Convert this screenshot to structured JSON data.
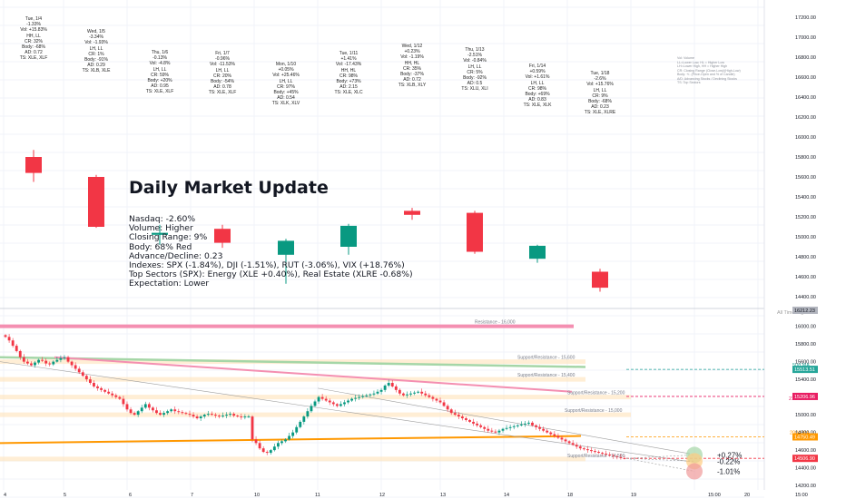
{
  "title": "Daily Market Update",
  "info_lines": [
    "Nasdaq: -2.60%",
    "Volume: Higher",
    "Closing Range: 9%",
    "Body: 68% Red",
    "Advance/Decline: 0.23",
    "Indexes: SPX (-1.84%), DJI (-1.51%), RUT (-3.06%), VIX (+18.76%)",
    "Top Sectors (SPX): Energy (XLE +0.40%), Real Estate (XLRE -0.68%)",
    "Expectation: Lower"
  ],
  "legend_lines": [
    "Vol: Volume",
    "LL=Lower Low, HL = Higher Low",
    "LH=Lower High, HH = Higher High",
    "CR: Closing Range (Close-Low)/(High-Low)",
    "Body: +/- (Price-Open and % of Candle)",
    "A/D: Advancing Stocks / Declining Stocks",
    "TS: Top Sectors"
  ],
  "colors": {
    "up": "#089981",
    "down": "#f23645",
    "bg": "#ffffff",
    "grid": "#f0f3fa",
    "ma50": "#26a69a",
    "ema21": "#e91e63",
    "ma200": "#ff9800",
    "resistance_band": "#ffe0b2",
    "resistance_line": "#f48fb1"
  },
  "chart_data": [
    {
      "type": "candlestick",
      "title": "Daily candles",
      "y_axis_ticks": [
        "17200.00",
        "17000.00",
        "16800.00",
        "16600.00",
        "16400.00",
        "16200.00",
        "16000.00",
        "15800.00",
        "15600.00",
        "15400.00",
        "15200.00",
        "15000.00",
        "14800.00",
        "14600.00",
        "14400.00",
        "14200.00",
        "17800.00",
        "17600.00",
        "17400.00"
      ],
      "ylim": [
        14300,
        17300
      ],
      "candles": [
        {
          "label": "Tue, 1/4",
          "lines": [
            "Tue, 1/4",
            "-1.33%",
            "Vol: +15.83%",
            "HH, LL",
            "CR: 32%",
            "Body: -68%",
            "AD: 0.72",
            "TS: XLE, XLF"
          ],
          "open": 15800,
          "high": 15870,
          "low": 15550,
          "close": 15640
        },
        {
          "label": "Wed, 1/5",
          "lines": [
            "Wed, 1/5",
            "-3.34%",
            "Vol: -1.93%",
            "LH, LL",
            "CR: 1%",
            "Body: -91%",
            "AD: 0.29",
            "TS: XLB, XLE"
          ],
          "open": 15600,
          "high": 15620,
          "low": 15090,
          "close": 15100
        },
        {
          "label": "Thu, 1/6",
          "lines": [
            "Thu, 1/6",
            "-0.13%",
            "Vol: -4.8%",
            "LH, LL",
            "CR: 59%",
            "Body: +20%",
            "AD: 0.95",
            "TS: XLE, XLF"
          ],
          "open": 15020,
          "high": 15120,
          "low": 14920,
          "close": 15040
        },
        {
          "label": "Fri, 1/7",
          "lines": [
            "Fri, 1/7",
            "-0.96%",
            "Vol: -11.53%",
            "LH, LL",
            "CR: 20%",
            "Body: -54%",
            "AD: 0.78",
            "TS: XLE, XLF"
          ],
          "open": 15080,
          "high": 15120,
          "low": 14890,
          "close": 14940
        },
        {
          "label": "Mon, 1/10",
          "lines": [
            "Mon, 1/10",
            "+0.05%",
            "Vol: +25.46%",
            "LH, LL",
            "CR: 97%",
            "Body: +45%",
            "AD: 0.54",
            "TS: XLK, XLV"
          ],
          "open": 14820,
          "high": 14980,
          "low": 14530,
          "close": 14960
        },
        {
          "label": "Tue, 1/11",
          "lines": [
            "Tue, 1/11",
            "+1.41%",
            "Vol: -17.43%",
            "HH, HL",
            "CR: 98%",
            "Body: +73%",
            "AD: 2.15",
            "TS: XLE, XLC"
          ],
          "open": 14900,
          "high": 15130,
          "low": 14820,
          "close": 15110
        },
        {
          "label": "Wed, 1/12",
          "lines": [
            "Wed, 1/12",
            "+0.23%",
            "Vol: -1.19%",
            "HH, HL",
            "CR: 35%",
            "Body: -37%",
            "AD: 0.72",
            "TS: XLB, XLY"
          ],
          "open": 15260,
          "high": 15290,
          "low": 15170,
          "close": 15220
        },
        {
          "label": "Thu, 1/13",
          "lines": [
            "Thu, 1/13",
            "-2.51%",
            "Vol: -0.84%",
            "LH, LL",
            "CR: 5%",
            "Body: -92%",
            "AD: 0.5",
            "TS: XLU, XLI"
          ],
          "open": 15240,
          "high": 15260,
          "low": 14830,
          "close": 14850
        },
        {
          "label": "Fri, 1/14",
          "lines": [
            "Fri, 1/14",
            "+0.59%",
            "Vol: +1.61%",
            "LH, LL",
            "CR: 98%",
            "Body: +69%",
            "AD: 0.83",
            "TS: XLE, XLK"
          ],
          "open": 14780,
          "high": 14920,
          "low": 14740,
          "close": 14910
        },
        {
          "label": "Tue, 1/18",
          "lines": [
            "Tue, 1/18",
            "-2.6%",
            "Vol: +15.76%",
            "LH, LL",
            "CR: 9%",
            "Body: -68%",
            "AD: 0.23",
            "TS: XLE, XLRE"
          ],
          "open": 14650,
          "high": 14680,
          "low": 14450,
          "close": 14490
        }
      ]
    },
    {
      "type": "candlestick",
      "title": "Intraday 15-min",
      "x_tick_labels": [
        "4",
        "5",
        "6",
        "7",
        "10",
        "11",
        "12",
        "13",
        "14",
        "18",
        "19",
        "15:00",
        "20",
        "15:00"
      ],
      "y_axis_ticks": [
        "16000.00",
        "15800.00",
        "15600.00",
        "15400.00",
        "15200.00",
        "15000.00",
        "14800.00",
        "14600.00",
        "14400.00",
        "14200.00"
      ],
      "ylim": [
        14150,
        16150
      ],
      "highlighted_values": [
        {
          "label": "16212.23",
          "color": "#b2b5be"
        },
        {
          "label": "15513.51",
          "color": "#26a69a"
        },
        {
          "label": "15206.96",
          "color": "#e91e63"
        },
        {
          "label": "14750.49",
          "color": "#ff9800"
        },
        {
          "label": "14506.90",
          "color": "#f23645"
        }
      ],
      "levels": [
        {
          "label": "All Time High",
          "value": 16212
        },
        {
          "label": "Resistance - 16,000",
          "value": 16000
        },
        {
          "label": "Support/Resistance - 15,600",
          "value": 15600
        },
        {
          "label": "50d MA",
          "value": 15513
        },
        {
          "label": "Support/Resistance - 15,400",
          "value": 15400
        },
        {
          "label": "21d EMA",
          "value": 15207
        },
        {
          "label": "Support/Resistance - 15,200",
          "value": 15200
        },
        {
          "label": "Support/Resistance - 15,000",
          "value": 15000
        },
        {
          "label": "200d MA",
          "value": 14750
        },
        {
          "label": "Support/Resistance - 14,500",
          "value": 14500
        }
      ],
      "scenarios": [
        {
          "label": "+0.27%",
          "value": 14546
        },
        {
          "label": "-0.22%",
          "value": 14475
        },
        {
          "label": "-1.01%",
          "value": 14360
        }
      ],
      "path": [
        15880,
        15840,
        15780,
        15720,
        15650,
        15600,
        15580,
        15560,
        15590,
        15620,
        15610,
        15580,
        15570,
        15600,
        15620,
        15640,
        15650,
        15600,
        15560,
        15520,
        15480,
        15440,
        15400,
        15360,
        15320,
        15300,
        15280,
        15260,
        15240,
        15220,
        15200,
        15180,
        15120,
        15060,
        15020,
        15000,
        15040,
        15080,
        15120,
        15080,
        15050,
        15020,
        15000,
        15020,
        15040,
        15060,
        15040,
        15030,
        15020,
        15010,
        15000,
        14980,
        14960,
        14980,
        15000,
        15010,
        15000,
        14990,
        14980,
        14990,
        15000,
        15010,
        14990,
        14980,
        14970,
        14980,
        14980,
        14720,
        14680,
        14620,
        14580,
        14570,
        14600,
        14640,
        14680,
        14700,
        14720,
        14760,
        14800,
        14860,
        14920,
        14980,
        15040,
        15100,
        15150,
        15200,
        15180,
        15160,
        15140,
        15120,
        15100,
        15120,
        15140,
        15160,
        15180,
        15190,
        15200,
        15210,
        15220,
        15230,
        15240,
        15260,
        15280,
        15330,
        15360,
        15320,
        15280,
        15240,
        15220,
        15230,
        15240,
        15250,
        15260,
        15240,
        15220,
        15200,
        15180,
        15160,
        15140,
        15100,
        15060,
        15020,
        15000,
        14980,
        14960,
        14940,
        14920,
        14900,
        14880,
        14860,
        14840,
        14820,
        14810,
        14800,
        14820,
        14840,
        14850,
        14860,
        14870,
        14880,
        14890,
        14900,
        14910,
        14880,
        14860,
        14840,
        14820,
        14800,
        14780,
        14760,
        14740,
        14720,
        14700,
        14680,
        14660,
        14640,
        14620,
        14610,
        14600,
        14590,
        14580,
        14570,
        14560,
        14550,
        14540,
        14530,
        14520,
        14510,
        14507
      ]
    }
  ]
}
